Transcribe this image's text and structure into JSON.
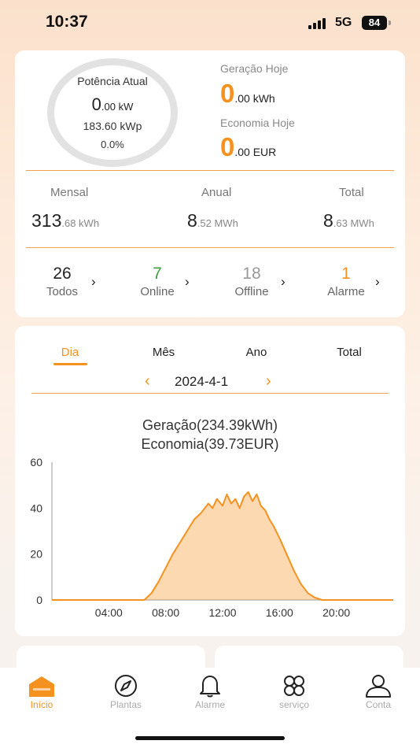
{
  "status": {
    "time": "10:37",
    "network": "5G",
    "battery": "84"
  },
  "overview": {
    "gauge": {
      "title": "Potência Atual",
      "power_value": "0",
      "power_unit": ".00 kW",
      "capacity": "183.60 kWp",
      "percent": "0.0%"
    },
    "generation_today": {
      "label": "Geração Hoje",
      "value": "0",
      "unit": ".00 kWh"
    },
    "savings_today": {
      "label": "Economia Hoje",
      "value": "0",
      "unit": ".00 EUR"
    },
    "stats": [
      {
        "label": "Mensal",
        "value": "313",
        "unit": ".68 kWh"
      },
      {
        "label": "Anual",
        "value": "8",
        "unit": ".52 MWh"
      },
      {
        "label": "Total",
        "value": "8",
        "unit": ".63 MWh"
      }
    ],
    "counts": [
      {
        "num": "26",
        "label": "Todos",
        "color": "#222222"
      },
      {
        "num": "7",
        "label": "Online",
        "color": "#3aa13a"
      },
      {
        "num": "18",
        "label": "Offline",
        "color": "#999999"
      },
      {
        "num": "1",
        "label": "Alarme",
        "color": "#f5921f"
      }
    ]
  },
  "period": {
    "tabs": [
      "Dia",
      "Mês",
      "Ano",
      "Total"
    ],
    "active_tab": "Dia",
    "date": "2024-4-1",
    "prev_icon": "chevron-left-icon",
    "next_icon": "chevron-right-icon"
  },
  "chart_title": {
    "line1": "Geração(234.39kWh)",
    "line2": "Economia(39.73EUR)"
  },
  "chart_data": {
    "type": "area",
    "title": "Geração(234.39kWh) Economia(39.73EUR)",
    "xlabel": "",
    "ylabel": "",
    "x_ticks": [
      "04:00",
      "08:00",
      "12:00",
      "16:00",
      "20:00"
    ],
    "y_ticks": [
      0,
      20,
      40,
      60
    ],
    "ylim": [
      0,
      60
    ],
    "xlim_hours": [
      0,
      24
    ],
    "grid": false,
    "color": "#f5921f",
    "x": [
      6.5,
      7.0,
      7.5,
      8.0,
      8.5,
      9.0,
      9.5,
      10.0,
      10.5,
      11.0,
      11.3,
      11.6,
      12.0,
      12.3,
      12.6,
      12.9,
      13.2,
      13.5,
      13.8,
      14.1,
      14.4,
      14.7,
      15.0,
      15.3,
      15.6,
      16.0,
      16.5,
      17.0,
      17.5,
      18.0,
      18.5,
      19.0
    ],
    "values": [
      0,
      3,
      8,
      14,
      20,
      25,
      30,
      35,
      38,
      42,
      40,
      44,
      41,
      46,
      42,
      44,
      40,
      45,
      47,
      43,
      46,
      41,
      39,
      35,
      32,
      27,
      20,
      13,
      7,
      3,
      1,
      0
    ]
  },
  "bottom_nav": [
    {
      "label": "Início",
      "icon": "home-icon",
      "active": true
    },
    {
      "label": "Plantas",
      "icon": "compass-icon",
      "active": false
    },
    {
      "label": "Alarme",
      "icon": "bell-icon",
      "active": false
    },
    {
      "label": "serviço",
      "icon": "service-icon",
      "active": false
    },
    {
      "label": "Conta",
      "icon": "user-icon",
      "active": false
    }
  ]
}
